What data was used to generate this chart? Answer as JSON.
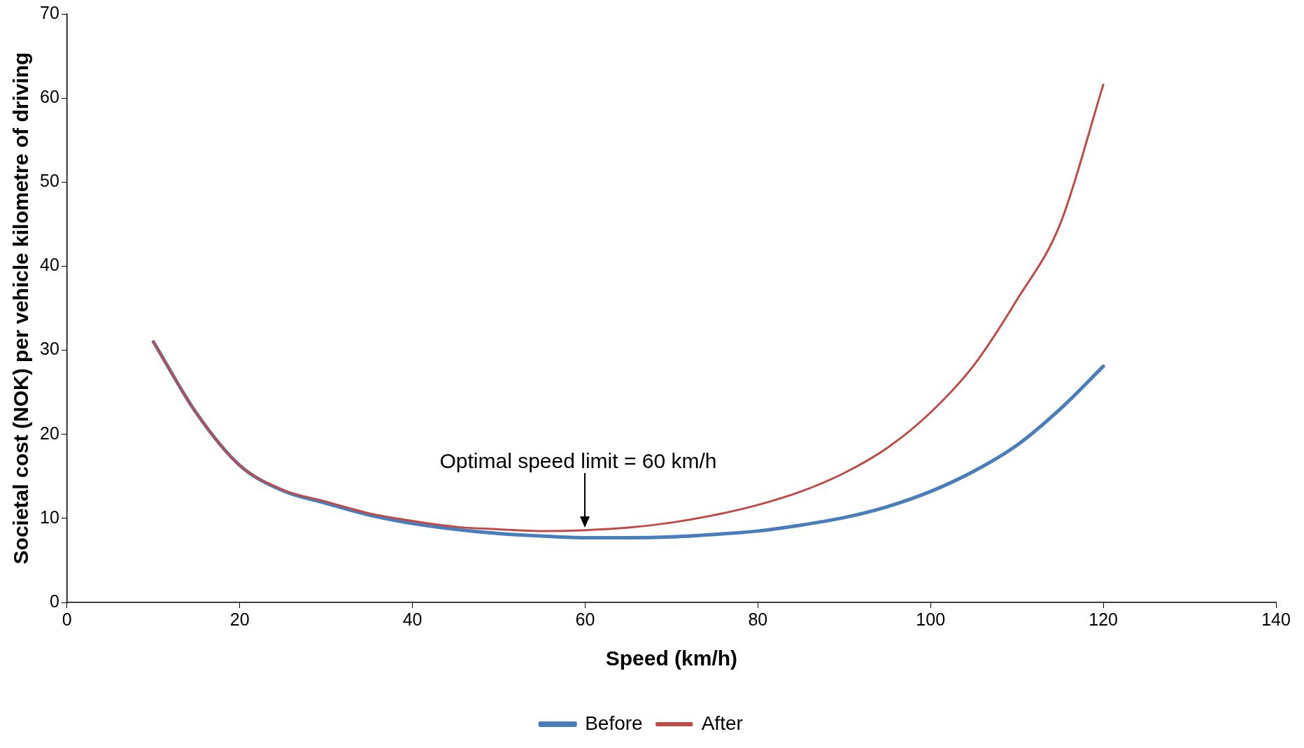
{
  "chart_data": {
    "type": "line",
    "xlabel": "Speed (km/h)",
    "ylabel": "Societal cost (NOK) per vehicle kilometre of driving",
    "x": [
      10,
      15,
      20,
      25,
      30,
      35,
      40,
      45,
      50,
      55,
      60,
      65,
      70,
      75,
      80,
      85,
      90,
      95,
      100,
      105,
      110,
      115,
      120
    ],
    "series": [
      {
        "name": "Before",
        "color": "#4a7ebb",
        "values": [
          31,
          22.5,
          16.3,
          13.3,
          11.8,
          10.4,
          9.4,
          8.7,
          8.2,
          7.9,
          7.7,
          7.7,
          7.8,
          8.1,
          8.5,
          9.2,
          10.1,
          11.4,
          13.2,
          15.6,
          18.7,
          23.0,
          28.1
        ]
      },
      {
        "name": "After",
        "color": "#be4b48",
        "values": [
          31,
          22.5,
          16.3,
          13.4,
          12.0,
          10.6,
          9.7,
          9.0,
          8.7,
          8.5,
          8.6,
          8.9,
          9.5,
          10.4,
          11.6,
          13.2,
          15.4,
          18.4,
          22.6,
          28.2,
          36.0,
          45.0,
          61.6
        ]
      }
    ],
    "xlim": [
      0,
      140
    ],
    "xticks": [
      0,
      20,
      40,
      60,
      80,
      100,
      120,
      140
    ],
    "ylim": [
      0,
      70
    ],
    "yticks": [
      0,
      10,
      20,
      30,
      40,
      50,
      60,
      70
    ],
    "grid": false,
    "legend": "bottom",
    "marker": "none",
    "line_style": "solid",
    "annotations": [
      {
        "text": "Optimal speed limit = 60 km/h",
        "x": 60,
        "y": 8.6
      }
    ]
  }
}
